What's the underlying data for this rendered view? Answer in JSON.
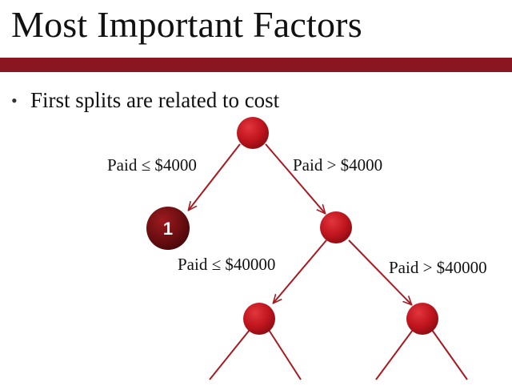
{
  "slide": {
    "title": "Most Important Factors",
    "bullet_symbol": "•",
    "bullet_text": "First splits are related to cost"
  },
  "tree": {
    "edges": {
      "root_left": "Paid ≤ $4000",
      "root_right": "Paid > $4000",
      "mid_left": "Paid ≤ $40000",
      "mid_right": "Paid > $40000"
    },
    "leaf_left": "1"
  },
  "colors": {
    "accent_bar": "#8a1622",
    "node_red": "#c0151e",
    "leaf_dark": "#6e0f12",
    "edge_line": "#a81a22"
  }
}
